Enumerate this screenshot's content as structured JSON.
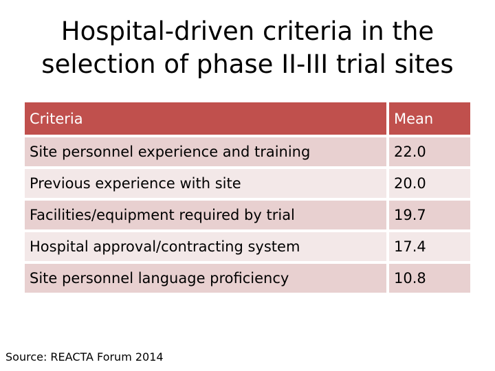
{
  "title": {
    "line1": "Hospital-driven criteria in the",
    "line2": "selection of phase II-III trial sites"
  },
  "table": {
    "headers": [
      "Criteria",
      "Mean"
    ],
    "rows": [
      {
        "criteria": "Site personnel experience and training",
        "mean": "22.0"
      },
      {
        "criteria": "Previous experience with site",
        "mean": "20.0"
      },
      {
        "criteria": "Facilities/equipment required by trial",
        "mean": "19.7"
      },
      {
        "criteria": "Hospital approval/contracting system",
        "mean": "17.4"
      },
      {
        "criteria": "Site personnel language proficiency",
        "mean": "10.8"
      }
    ]
  },
  "source": "Source: REACTA Forum 2014",
  "colors": {
    "header_bg": "#c0504d",
    "row_odd_bg": "#e8d0d0",
    "row_even_bg": "#f3e8e8"
  }
}
